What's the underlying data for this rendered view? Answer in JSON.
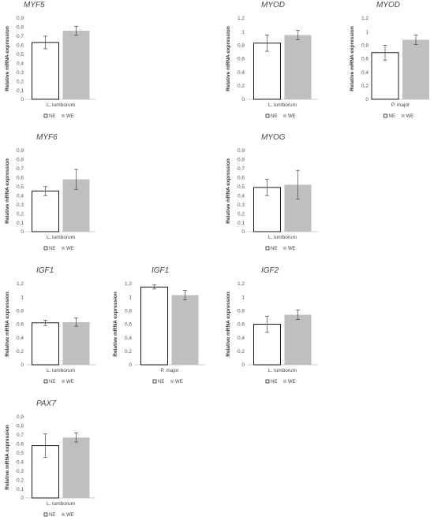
{
  "colors": {
    "ne_fill": "#ffffff",
    "ne_stroke": "#000000",
    "we_fill": "#bfbfbf",
    "axis": "#bfbfbf",
    "error": "#444444"
  },
  "chart_data": [
    {
      "type": "bar",
      "title": "MYF5",
      "ylabel": "Relative mRNA expression",
      "ylim": [
        0,
        0.9
      ],
      "yticks": [
        "0",
        "0,1",
        "0,2",
        "0,3",
        "0,4",
        "0,5",
        "0,6",
        "0,7",
        "0,8",
        "0,9"
      ],
      "categories": [
        "L. lumborum"
      ],
      "series": [
        {
          "name": "NE",
          "values": [
            0.63
          ],
          "error": [
            0.07
          ]
        },
        {
          "name": "WE",
          "values": [
            0.76
          ],
          "error": [
            0.05
          ]
        }
      ],
      "legend": "bottom"
    },
    {
      "type": "bar",
      "title": "MYOD",
      "ylabel": "Relative mRNA expression",
      "ylim": [
        0,
        1.2
      ],
      "yticks": [
        "0",
        "0,2",
        "0,4",
        "0,6",
        "0,8",
        "1",
        "1,2"
      ],
      "categories": [
        "L. lumborum"
      ],
      "series": [
        {
          "name": "NE",
          "values": [
            0.83
          ],
          "error": [
            0.12
          ]
        },
        {
          "name": "WE",
          "values": [
            0.95
          ],
          "error": [
            0.07
          ]
        }
      ],
      "legend": "bottom"
    },
    {
      "type": "bar",
      "title": "MYOD",
      "ylabel": "Relative mRNA expression",
      "ylim": [
        0,
        1.2
      ],
      "yticks": [
        "0",
        "0,2",
        "0,4",
        "0,6",
        "0,8",
        "1",
        "1,2"
      ],
      "categories": [
        "P. major"
      ],
      "series": [
        {
          "name": "NE",
          "values": [
            0.69
          ],
          "error": [
            0.11
          ]
        },
        {
          "name": "WE",
          "values": [
            0.88
          ],
          "error": [
            0.07
          ]
        }
      ],
      "legend": "bottom"
    },
    {
      "type": "bar",
      "title": "MYF6",
      "ylabel": "Relative mRNA expression",
      "ylim": [
        0,
        0.9
      ],
      "yticks": [
        "0",
        "0,1",
        "0,2",
        "0,3",
        "0,4",
        "0,5",
        "0,6",
        "0,7",
        "0,8",
        "0,9"
      ],
      "categories": [
        "L. lumborum"
      ],
      "series": [
        {
          "name": "NE",
          "values": [
            0.45
          ],
          "error": [
            0.05
          ]
        },
        {
          "name": "WE",
          "values": [
            0.58
          ],
          "error": [
            0.11
          ]
        }
      ],
      "legend": "bottom"
    },
    {
      "type": "bar",
      "title": "MYOG",
      "ylabel": "Relative mRNA expression",
      "ylim": [
        0,
        0.9
      ],
      "yticks": [
        "0",
        "0,1",
        "0,2",
        "0,3",
        "0,4",
        "0,5",
        "0,6",
        "0,7",
        "0,8",
        "0,9"
      ],
      "categories": [
        "L. lumborum"
      ],
      "series": [
        {
          "name": "NE",
          "values": [
            0.49
          ],
          "error": [
            0.09
          ]
        },
        {
          "name": "WE",
          "values": [
            0.52
          ],
          "error": [
            0.16
          ]
        }
      ],
      "legend": "bottom"
    },
    {
      "type": "bar",
      "title": "IGF1",
      "ylabel": "Relative mRNA expression",
      "ylim": [
        0,
        1.2
      ],
      "yticks": [
        "0",
        "0,2",
        "0,4",
        "0,6",
        "0,8",
        "1",
        "1,2"
      ],
      "categories": [
        "L. lumborum"
      ],
      "series": [
        {
          "name": "NE",
          "values": [
            0.62
          ],
          "error": [
            0.04
          ]
        },
        {
          "name": "WE",
          "values": [
            0.63
          ],
          "error": [
            0.06
          ]
        }
      ],
      "legend": "bottom"
    },
    {
      "type": "bar",
      "title": "IGF1",
      "ylabel": "Relative mRNA expression",
      "ylim": [
        0,
        1.2
      ],
      "yticks": [
        "0",
        "0,2",
        "0,4",
        "0,6",
        "0,8",
        "1",
        "1,2"
      ],
      "categories": [
        "P. major"
      ],
      "series": [
        {
          "name": "NE",
          "values": [
            1.15
          ],
          "error": [
            0.03
          ]
        },
        {
          "name": "WE",
          "values": [
            1.03
          ],
          "error": [
            0.07
          ]
        }
      ],
      "legend": "bottom"
    },
    {
      "type": "bar",
      "title": "IGF2",
      "ylabel": "Relative mRNA expression",
      "ylim": [
        0,
        1.2
      ],
      "yticks": [
        "0",
        "0,2",
        "0,4",
        "0,6",
        "0,8",
        "1",
        "1,2"
      ],
      "categories": [
        "L. lumborum"
      ],
      "series": [
        {
          "name": "NE",
          "values": [
            0.6
          ],
          "error": [
            0.12
          ]
        },
        {
          "name": "WE",
          "values": [
            0.74
          ],
          "error": [
            0.07
          ]
        }
      ],
      "legend": "bottom"
    },
    {
      "type": "bar",
      "title": "PAX7",
      "ylabel": "Relative mRNA expression",
      "ylim": [
        0,
        0.9
      ],
      "yticks": [
        "0",
        "0,1",
        "0,2",
        "0,3",
        "0,4",
        "0,5",
        "0,6",
        "0,7",
        "0,8",
        "0,9"
      ],
      "categories": [
        "L. lumborum"
      ],
      "series": [
        {
          "name": "NE",
          "values": [
            0.58
          ],
          "error": [
            0.13
          ]
        },
        {
          "name": "WE",
          "values": [
            0.67
          ],
          "error": [
            0.05
          ]
        }
      ],
      "legend": "bottom"
    }
  ]
}
